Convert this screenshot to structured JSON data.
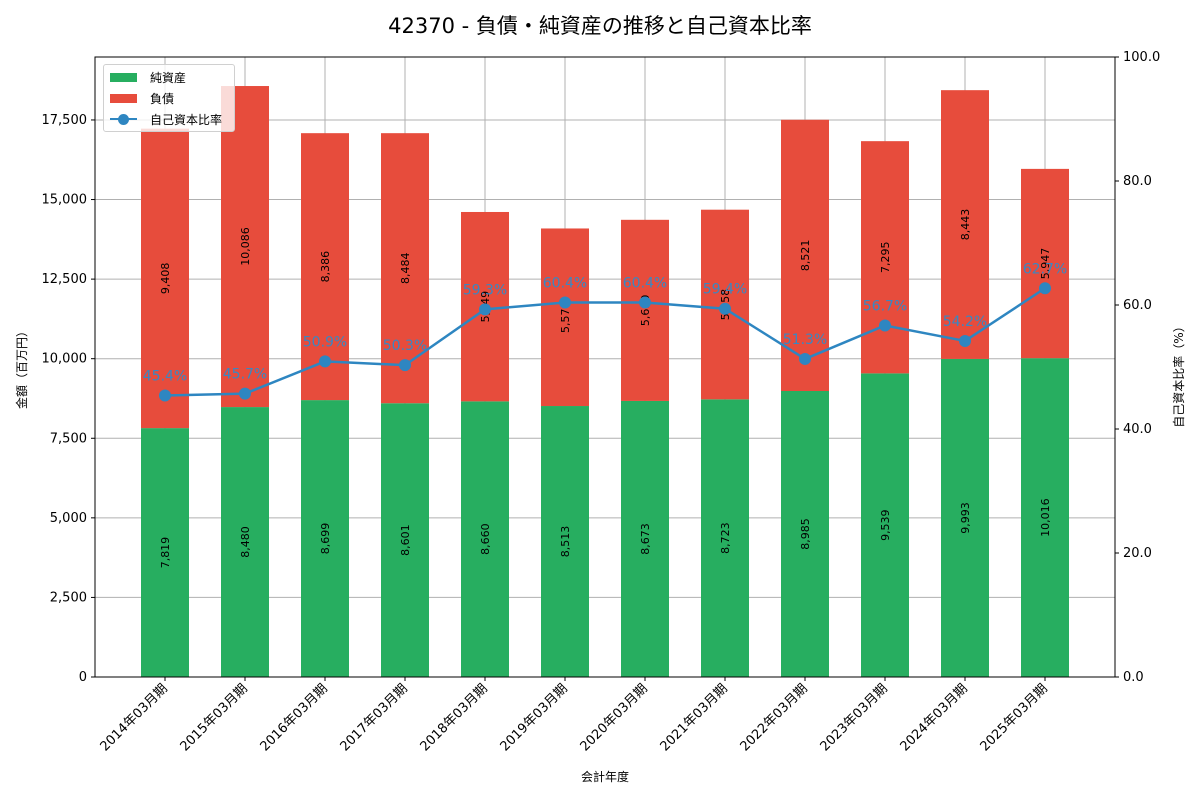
{
  "title": "42370 - 負債・純資産の推移と自己資本比率",
  "legend": {
    "equity": "純資産",
    "liabilities": "負債",
    "ratio": "自己資本比率"
  },
  "axes": {
    "xlabel": "会計年度",
    "ylabel_left": "金額（百万円）",
    "ylabel_right": "自己資本比率（%）",
    "left_ticks": [
      "0",
      "2,500",
      "5,000",
      "7,500",
      "10,000",
      "12,500",
      "15,000",
      "17,500"
    ],
    "right_ticks": [
      "0.0",
      "20.0",
      "40.0",
      "60.0",
      "80.0",
      "100.0"
    ]
  },
  "colors": {
    "equity": "#27ae60",
    "liabilities": "#e74c3c",
    "ratio": "#2e86c1"
  },
  "chart_data": {
    "type": "bar",
    "stacked": true,
    "title": "42370 - 負債・純資産の推移と自己資本比率",
    "xlabel": "会計年度",
    "ylabel": "金額（百万円）",
    "ylabel_secondary": "自己資本比率（%）",
    "ylim": [
      0,
      19478
    ],
    "ylim_secondary": [
      0,
      100
    ],
    "grid": true,
    "legend_position": "upper left",
    "categories": [
      "2014年03月期",
      "2015年03月期",
      "2016年03月期",
      "2017年03月期",
      "2018年03月期",
      "2019年03月期",
      "2020年03月期",
      "2021年03月期",
      "2022年03月期",
      "2023年03月期",
      "2024年03月期",
      "2025年03月期"
    ],
    "series": [
      {
        "name": "純資産",
        "type": "bar",
        "values": [
          7819,
          8480,
          8699,
          8601,
          8660,
          8513,
          8673,
          8723,
          8985,
          9539,
          9993,
          10016
        ],
        "labels": [
          "7,819",
          "8,480",
          "8,699",
          "8,601",
          "8,660",
          "8,513",
          "8,673",
          "8,723",
          "8,985",
          "9,539",
          "9,993",
          "10,016"
        ]
      },
      {
        "name": "負債",
        "type": "bar",
        "values": [
          9408,
          10086,
          8386,
          8484,
          5949,
          5578,
          5690,
          5958,
          8521,
          7295,
          8443,
          5947
        ],
        "labels": [
          "9,408",
          "10,086",
          "8,386",
          "8,484",
          "5,949",
          "5,578",
          "5,690",
          "5,958",
          "8,521",
          "7,295",
          "8,443",
          "5,947"
        ]
      },
      {
        "name": "自己資本比率",
        "type": "line",
        "axis": "secondary",
        "values": [
          45.4,
          45.7,
          50.9,
          50.3,
          59.3,
          60.4,
          60.4,
          59.4,
          51.3,
          56.7,
          54.2,
          62.7
        ],
        "labels": [
          "45.4%",
          "45.7%",
          "50.9%",
          "50.3%",
          "59.3%",
          "60.4%",
          "60.4%",
          "59.4%",
          "51.3%",
          "56.7%",
          "54.2%",
          "62.7%"
        ]
      }
    ]
  }
}
